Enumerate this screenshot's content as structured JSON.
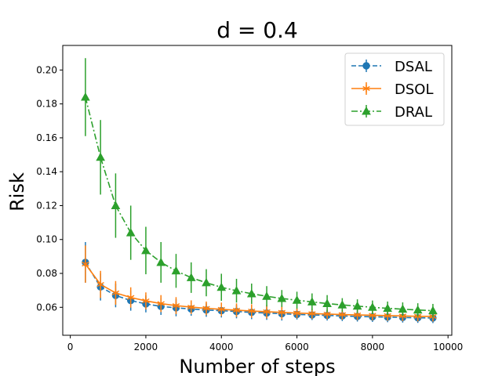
{
  "chart_data": {
    "type": "line",
    "title": "d = 0.4",
    "xlabel": "Number of steps",
    "ylabel": "Risk",
    "xlim": [
      -200,
      10100
    ],
    "ylim": [
      0.0435,
      0.2145
    ],
    "xticks": [
      0,
      2000,
      4000,
      6000,
      8000,
      10000
    ],
    "xtick_labels": [
      "0",
      "2000",
      "4000",
      "6000",
      "8000",
      "10000"
    ],
    "yticks": [
      0.06,
      0.08,
      0.1,
      0.12,
      0.14,
      0.16,
      0.18,
      0.2
    ],
    "ytick_labels": [
      "0.06",
      "0.08",
      "0.10",
      "0.12",
      "0.14",
      "0.16",
      "0.18",
      "0.20"
    ],
    "legend_position": "top-right",
    "x": [
      400,
      800,
      1200,
      1600,
      2000,
      2400,
      2800,
      3200,
      3600,
      4000,
      4400,
      4800,
      5200,
      5600,
      6000,
      6400,
      6800,
      7200,
      7600,
      8000,
      8400,
      8800,
      9200,
      9600
    ],
    "series": [
      {
        "name": "DSAL",
        "color": "#1f77b4",
        "marker": "circle",
        "linestyle": "dashed",
        "values": [
          0.0865,
          0.072,
          0.067,
          0.064,
          0.062,
          0.0605,
          0.0597,
          0.059,
          0.0584,
          0.058,
          0.0575,
          0.057,
          0.0566,
          0.0562,
          0.0558,
          0.0555,
          0.0552,
          0.0549,
          0.0546,
          0.0544,
          0.0542,
          0.054,
          0.0538,
          0.0537
        ],
        "errors": [
          0.012,
          0.008,
          0.007,
          0.006,
          0.005,
          0.005,
          0.005,
          0.004,
          0.004,
          0.004,
          0.004,
          0.004,
          0.004,
          0.004,
          0.003,
          0.003,
          0.003,
          0.003,
          0.003,
          0.003,
          0.003,
          0.003,
          0.003,
          0.003
        ]
      },
      {
        "name": "DSOL",
        "color": "#ff7f0e",
        "marker": "star",
        "linestyle": "solid",
        "values": [
          0.0855,
          0.0735,
          0.0685,
          0.0658,
          0.0638,
          0.0622,
          0.061,
          0.0601,
          0.0594,
          0.0588,
          0.0583,
          0.0578,
          0.0574,
          0.057,
          0.0566,
          0.0563,
          0.056,
          0.0557,
          0.0555,
          0.0553,
          0.0551,
          0.0549,
          0.0547,
          0.0546
        ],
        "errors": [
          0.011,
          0.008,
          0.007,
          0.006,
          0.005,
          0.005,
          0.005,
          0.004,
          0.004,
          0.004,
          0.004,
          0.004,
          0.004,
          0.004,
          0.003,
          0.003,
          0.003,
          0.003,
          0.003,
          0.003,
          0.003,
          0.003,
          0.003,
          0.003
        ]
      },
      {
        "name": "DRAL",
        "color": "#2ca02c",
        "marker": "triangle",
        "linestyle": "dashdot",
        "values": [
          0.184,
          0.1485,
          0.12,
          0.104,
          0.0935,
          0.0865,
          0.0815,
          0.0775,
          0.0745,
          0.0718,
          0.0698,
          0.068,
          0.0665,
          0.0652,
          0.0642,
          0.0632,
          0.0622,
          0.0614,
          0.0607,
          0.06,
          0.0594,
          0.0589,
          0.0584,
          0.058
        ],
        "errors": [
          0.023,
          0.022,
          0.019,
          0.016,
          0.014,
          0.012,
          0.01,
          0.009,
          0.008,
          0.008,
          0.007,
          0.006,
          0.006,
          0.005,
          0.005,
          0.005,
          0.005,
          0.004,
          0.004,
          0.004,
          0.004,
          0.004,
          0.004,
          0.004
        ]
      }
    ]
  }
}
